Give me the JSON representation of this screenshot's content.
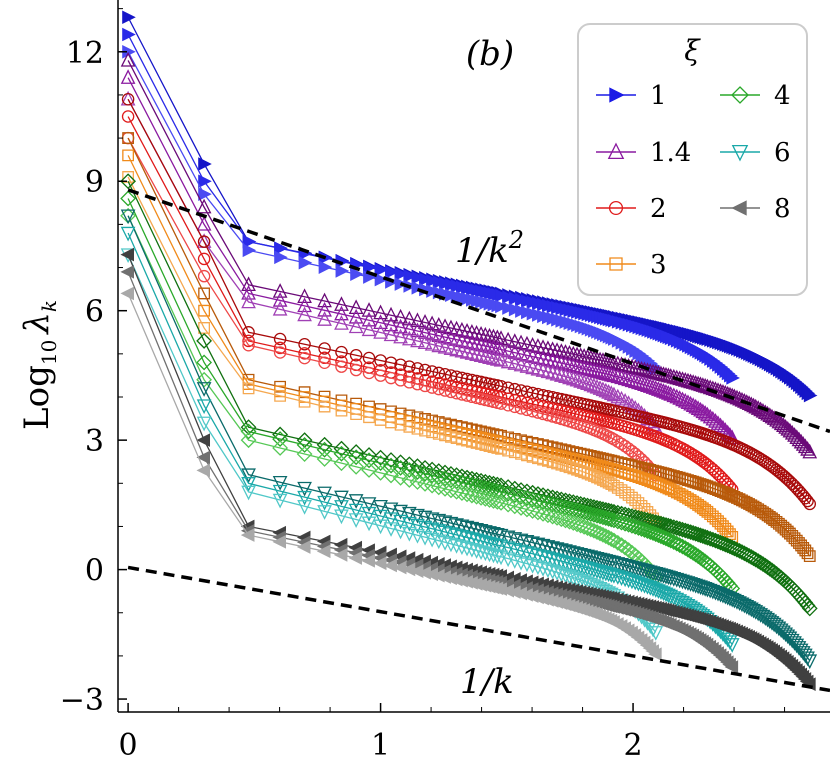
{
  "chart_data": {
    "type": "line",
    "panel_label": "(b)",
    "xlabel": "",
    "ylabel": "Log",
    "ylabel_sub": "10",
    "ylabel_var": "λ",
    "ylabel_var_sub": "k",
    "xlim": [
      -0.04,
      2.78
    ],
    "ylim": [
      -3.3,
      13.2
    ],
    "x_ticks": [
      {
        "v": 0,
        "label": "0"
      },
      {
        "v": 1,
        "label": "1"
      },
      {
        "v": 2,
        "label": "2"
      }
    ],
    "y_ticks": [
      {
        "v": -3,
        "label": "−3"
      },
      {
        "v": 0,
        "label": "0"
      },
      {
        "v": 3,
        "label": "3"
      },
      {
        "v": 6,
        "label": "6"
      },
      {
        "v": 9,
        "label": "9"
      },
      {
        "v": 12,
        "label": "12"
      }
    ],
    "legend": {
      "title": "ξ",
      "position": "top-right"
    },
    "reference_lines": [
      {
        "label_base": "1/k",
        "label_sup": "2",
        "x": [
          0,
          2.78
        ],
        "y": [
          8.8,
          3.2
        ]
      },
      {
        "label_base": "1/k",
        "label_sup": "",
        "x": [
          0,
          2.78
        ],
        "y": [
          0.05,
          -2.8
        ]
      }
    ],
    "series": [
      {
        "name": "1",
        "color": "#1a1ae6",
        "marker": "tri-right",
        "filled": true,
        "variants": [
          {
            "color": "#1515c8",
            "y0": 12.8,
            "y1": 9.4,
            "y2": 7.6,
            "slope": -1.2,
            "xend": 2.7,
            "drop": 0.9
          },
          {
            "color": "#2a2ae8",
            "y0": 12.4,
            "y1": 9.0,
            "y2": 7.6,
            "slope": -1.25,
            "xend": 2.4,
            "drop": 0.8
          },
          {
            "color": "#4a4af2",
            "y0": 12.0,
            "y1": 8.7,
            "y2": 7.4,
            "slope": -1.3,
            "xend": 2.1,
            "drop": 0.7
          }
        ]
      },
      {
        "name": "1.4",
        "color": "#8a1aa0",
        "marker": "tri-up",
        "filled": false,
        "variants": [
          {
            "color": "#6a0a78",
            "y0": 11.8,
            "y1": 8.4,
            "y2": 6.6,
            "slope": -1.25,
            "xend": 2.7,
            "drop": 1.1
          },
          {
            "color": "#8a1aa0",
            "y0": 11.4,
            "y1": 8.0,
            "y2": 6.4,
            "slope": -1.3,
            "xend": 2.4,
            "drop": 0.9
          },
          {
            "color": "#a040b5",
            "y0": 10.9,
            "y1": 7.6,
            "y2": 6.2,
            "slope": -1.35,
            "xend": 2.1,
            "drop": 0.8
          }
        ]
      },
      {
        "name": "2",
        "color": "#e01a1a",
        "marker": "circle",
        "filled": false,
        "variants": [
          {
            "color": "#a80a0a",
            "y0": 10.9,
            "y1": 7.6,
            "y2": 5.5,
            "slope": -1.25,
            "xend": 2.7,
            "drop": 1.2
          },
          {
            "color": "#e01a1a",
            "y0": 10.5,
            "y1": 7.2,
            "y2": 5.3,
            "slope": -1.3,
            "xend": 2.4,
            "drop": 1.0
          },
          {
            "color": "#ee4848",
            "y0": 10.0,
            "y1": 6.8,
            "y2": 5.2,
            "slope": -1.35,
            "xend": 2.1,
            "drop": 0.9
          }
        ]
      },
      {
        "name": "3",
        "color": "#f08a1a",
        "marker": "square",
        "filled": false,
        "variants": [
          {
            "color": "#b85a0a",
            "y0": 10.0,
            "y1": 6.4,
            "y2": 4.4,
            "slope": -1.3,
            "xend": 2.7,
            "drop": 1.2
          },
          {
            "color": "#f08a1a",
            "y0": 9.6,
            "y1": 6.0,
            "y2": 4.3,
            "slope": -1.35,
            "xend": 2.4,
            "drop": 1.0
          },
          {
            "color": "#f5a850",
            "y0": 9.1,
            "y1": 5.6,
            "y2": 4.2,
            "slope": -1.4,
            "xend": 2.1,
            "drop": 0.9
          }
        ]
      },
      {
        "name": "4",
        "color": "#2aa82a",
        "marker": "diamond",
        "filled": false,
        "variants": [
          {
            "color": "#107010",
            "y0": 9.0,
            "y1": 5.3,
            "y2": 3.3,
            "slope": -1.35,
            "xend": 2.7,
            "drop": 1.2
          },
          {
            "color": "#2aa82a",
            "y0": 8.6,
            "y1": 4.8,
            "y2": 3.2,
            "slope": -1.4,
            "xend": 2.4,
            "drop": 1.0
          },
          {
            "color": "#55c855",
            "y0": 8.2,
            "y1": 4.4,
            "y2": 3.0,
            "slope": -1.45,
            "xend": 2.1,
            "drop": 0.9
          }
        ]
      },
      {
        "name": "6",
        "color": "#1aa8a8",
        "marker": "tri-down",
        "filled": false,
        "variants": [
          {
            "color": "#0a6a6a",
            "y0": 8.2,
            "y1": 4.2,
            "y2": 2.2,
            "slope": -1.4,
            "xend": 2.7,
            "drop": 1.2
          },
          {
            "color": "#1aa8a8",
            "y0": 7.8,
            "y1": 3.8,
            "y2": 2.0,
            "slope": -1.45,
            "xend": 2.4,
            "drop": 1.0
          },
          {
            "color": "#50c8c8",
            "y0": 7.3,
            "y1": 3.4,
            "y2": 1.8,
            "slope": -1.5,
            "xend": 2.1,
            "drop": 0.9
          }
        ]
      },
      {
        "name": "8",
        "color": "#707070",
        "marker": "tri-left",
        "filled": true,
        "variants": [
          {
            "color": "#404040",
            "y0": 7.3,
            "y1": 3.0,
            "y2": 1.0,
            "slope": -1.15,
            "xend": 2.7,
            "drop": 1.1
          },
          {
            "color": "#707070",
            "y0": 6.9,
            "y1": 2.6,
            "y2": 0.9,
            "slope": -1.2,
            "xend": 2.4,
            "drop": 0.9
          },
          {
            "color": "#a8a8a8",
            "y0": 6.4,
            "y1": 2.3,
            "y2": 0.8,
            "slope": -1.25,
            "xend": 2.1,
            "drop": 0.8
          }
        ]
      }
    ]
  }
}
